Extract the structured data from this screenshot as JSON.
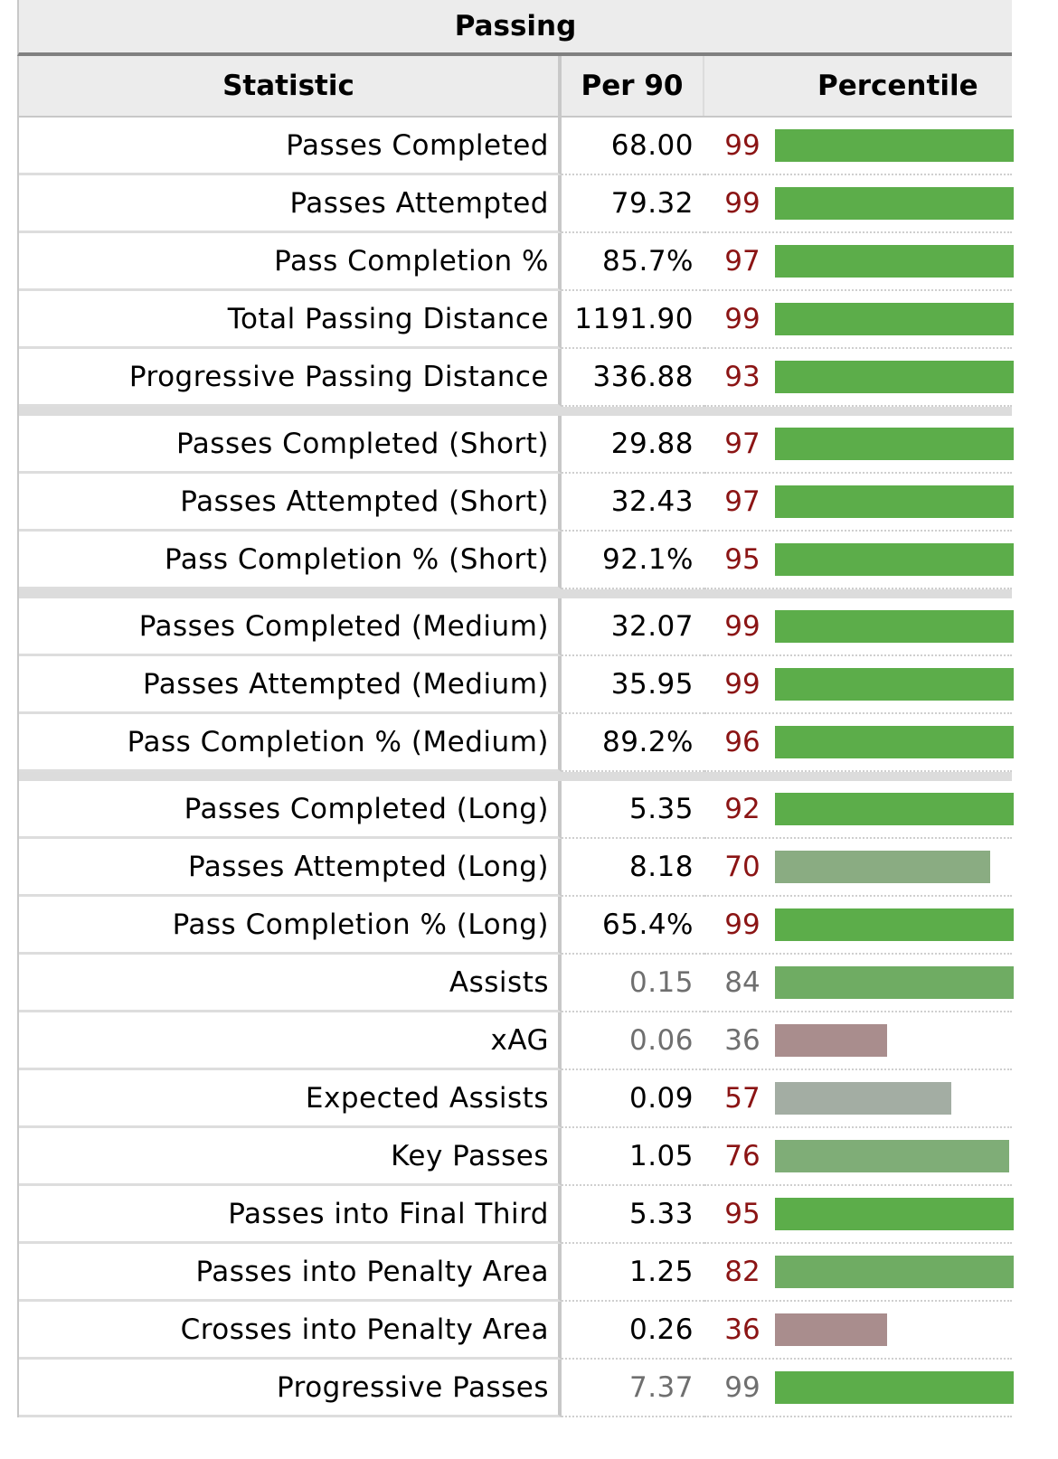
{
  "table": {
    "title": "Passing",
    "headers": {
      "statistic": "Statistic",
      "per90": "Per 90",
      "percentile": "Percentile"
    }
  },
  "colors": {
    "bar_green_strong": "#5cad4a",
    "bar_green_mid": "#6fac63",
    "bar_green_light": "#7fad77",
    "bar_green_pale": "#8aac82",
    "bar_gray": "#a3ada3",
    "bar_mauve": "#a98d8d",
    "percentile_text": "#8b1414",
    "muted_text": "#6f6f6f"
  },
  "groups": [
    {
      "rows": [
        {
          "stat": "Passes Completed",
          "per90": "68.00",
          "percentile": "99",
          "fraction": 1.0,
          "color": "#5cad4a",
          "muted": false
        },
        {
          "stat": "Passes Attempted",
          "per90": "79.32",
          "percentile": "99",
          "fraction": 1.0,
          "color": "#5cad4a",
          "muted": false
        },
        {
          "stat": "Pass Completion %",
          "per90": "85.7%",
          "percentile": "97",
          "fraction": 1.0,
          "color": "#5cad4a",
          "muted": false
        },
        {
          "stat": "Total Passing Distance",
          "per90": "1191.90",
          "percentile": "99",
          "fraction": 1.0,
          "color": "#5cad4a",
          "muted": false
        },
        {
          "stat": "Progressive Passing Distance",
          "per90": "336.88",
          "percentile": "93",
          "fraction": 1.0,
          "color": "#5cad4a",
          "muted": false
        }
      ]
    },
    {
      "rows": [
        {
          "stat": "Passes Completed (Short)",
          "per90": "29.88",
          "percentile": "97",
          "fraction": 1.0,
          "color": "#5cad4a",
          "muted": false
        },
        {
          "stat": "Passes Attempted (Short)",
          "per90": "32.43",
          "percentile": "97",
          "fraction": 1.0,
          "color": "#5cad4a",
          "muted": false
        },
        {
          "stat": "Pass Completion % (Short)",
          "per90": "92.1%",
          "percentile": "95",
          "fraction": 1.0,
          "color": "#5cad4a",
          "muted": false
        }
      ]
    },
    {
      "rows": [
        {
          "stat": "Passes Completed (Medium)",
          "per90": "32.07",
          "percentile": "99",
          "fraction": 1.0,
          "color": "#5cad4a",
          "muted": false
        },
        {
          "stat": "Passes Attempted (Medium)",
          "per90": "35.95",
          "percentile": "99",
          "fraction": 1.0,
          "color": "#5cad4a",
          "muted": false
        },
        {
          "stat": "Pass Completion % (Medium)",
          "per90": "89.2%",
          "percentile": "96",
          "fraction": 1.0,
          "color": "#5cad4a",
          "muted": false
        }
      ]
    },
    {
      "rows": [
        {
          "stat": "Passes Completed (Long)",
          "per90": "5.35",
          "percentile": "92",
          "fraction": 1.0,
          "color": "#5cad4a",
          "muted": false
        },
        {
          "stat": "Passes Attempted (Long)",
          "per90": "8.18",
          "percentile": "70",
          "fraction": 0.9,
          "color": "#8aac82",
          "muted": false
        },
        {
          "stat": "Pass Completion % (Long)",
          "per90": "65.4%",
          "percentile": "99",
          "fraction": 1.0,
          "color": "#5cad4a",
          "muted": false
        },
        {
          "stat": "Assists",
          "per90": "0.15",
          "percentile": "84",
          "fraction": 1.0,
          "color": "#6fac63",
          "muted": true
        },
        {
          "stat": "xAG",
          "per90": "0.06",
          "percentile": "36",
          "fraction": 0.47,
          "color": "#a98d8d",
          "muted": true
        },
        {
          "stat": "Expected Assists",
          "per90": "0.09",
          "percentile": "57",
          "fraction": 0.74,
          "color": "#a3ada3",
          "muted": false
        },
        {
          "stat": "Key Passes",
          "per90": "1.05",
          "percentile": "76",
          "fraction": 0.98,
          "color": "#7fad77",
          "muted": false
        },
        {
          "stat": "Passes into Final Third",
          "per90": "5.33",
          "percentile": "95",
          "fraction": 1.0,
          "color": "#5cad4a",
          "muted": false
        },
        {
          "stat": "Passes into Penalty Area",
          "per90": "1.25",
          "percentile": "82",
          "fraction": 1.0,
          "color": "#6fac63",
          "muted": false
        },
        {
          "stat": "Crosses into Penalty Area",
          "per90": "0.26",
          "percentile": "36",
          "fraction": 0.47,
          "color": "#a98d8d",
          "muted": false
        },
        {
          "stat": "Progressive Passes",
          "per90": "7.37",
          "percentile": "99",
          "fraction": 1.0,
          "color": "#5cad4a",
          "muted": true
        }
      ]
    }
  ]
}
